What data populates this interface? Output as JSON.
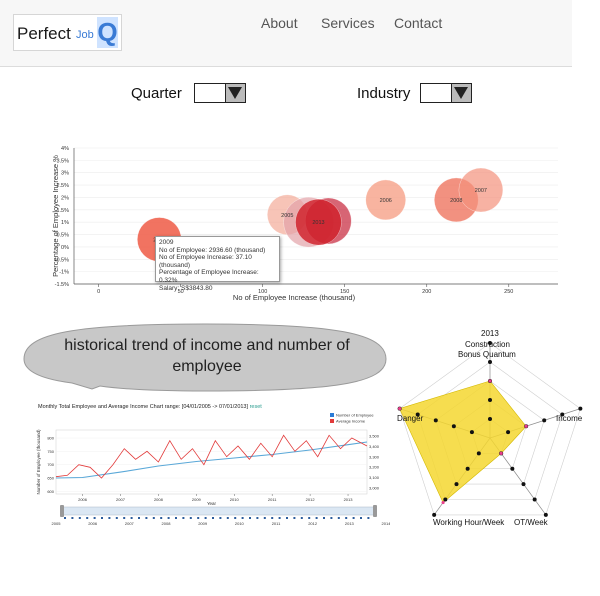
{
  "header": {
    "logo": {
      "part1": "Perfect",
      "part2": "Job",
      "part3": "Q"
    },
    "nav": [
      {
        "label": "About"
      },
      {
        "label": "Services"
      },
      {
        "label": "Contact"
      }
    ]
  },
  "filters": {
    "quarter": {
      "label": "Quarter",
      "value": ""
    },
    "industry": {
      "label": "Industry",
      "value": ""
    }
  },
  "chart_data": [
    {
      "type": "scatter",
      "subtype": "bubble",
      "title": "",
      "xlabel": "No of Employee Increase (thousand)",
      "ylabel": "Percentage of Employee Increase %",
      "xlim": [
        -15,
        280
      ],
      "ylim": [
        -1.5,
        4
      ],
      "x_ticks": [
        0,
        50,
        100,
        150,
        200,
        250
      ],
      "y_ticks": [
        -1.5,
        -1,
        -0.5,
        0,
        0.5,
        1,
        1.5,
        2,
        2.5,
        3,
        3.5,
        4
      ],
      "y_tick_format": "%",
      "grid": true,
      "points": [
        {
          "label": "2009",
          "x": 37,
          "y": 0.3,
          "r": 22,
          "color": "#ee5a45",
          "opacity": 0.85
        },
        {
          "label": "2005",
          "x": 115,
          "y": 1.3,
          "r": 20,
          "color": "#f3a590",
          "opacity": 0.65
        },
        {
          "label": "",
          "x": 128,
          "y": 1.0,
          "r": 25,
          "color": "#e3a2a8",
          "opacity": 0.7
        },
        {
          "label": "",
          "x": 140,
          "y": 1.05,
          "r": 23,
          "color": "#c72a3e",
          "opacity": 0.72
        },
        {
          "label": "2013",
          "x": 134,
          "y": 1.0,
          "r": 23,
          "color": "#d0202a",
          "opacity": 0.82
        },
        {
          "label": "2006",
          "x": 175,
          "y": 1.9,
          "r": 20,
          "color": "#f6a188",
          "opacity": 0.8
        },
        {
          "label": "2008",
          "x": 218,
          "y": 1.9,
          "r": 22,
          "color": "#ee6c55",
          "opacity": 0.75
        },
        {
          "label": "2007",
          "x": 233,
          "y": 2.3,
          "r": 22,
          "color": "#f3917c",
          "opacity": 0.7
        }
      ],
      "tooltip": {
        "title": "2009",
        "lines": [
          "No of Employee: 2936.60 (thousand)",
          "No of Employee Increase: 37.10 (thousand)",
          "Percentage of Employee Increase: 0.32%",
          "Salary: S$3843.80"
        ]
      }
    },
    {
      "type": "line",
      "title": "Monthly Total Employee and Average Income Chart",
      "range_label": "range: [04/01/2005 -> 07/01/2013]",
      "reset_label": "reset",
      "xlabel": "Year",
      "ylabel": "Number of Employee (thousand)",
      "x_ticks": [
        "2006",
        "2007",
        "2008",
        "2009",
        "2010",
        "2011",
        "2012",
        "2013"
      ],
      "left_y_ticks": [
        600,
        650,
        700,
        750,
        800
      ],
      "right_y_ticks": [
        "3,000",
        "3,100",
        "3,200",
        "3,300",
        "3,400",
        "3,500"
      ],
      "brush_ticks": [
        "2005",
        "2006",
        "2007",
        "2008",
        "2009",
        "2010",
        "2011",
        "2012",
        "2013",
        "2014"
      ],
      "legend": [
        {
          "name": "Number of Employee",
          "color": "#2b7bd6"
        },
        {
          "name": "Average Income",
          "color": "#e23a3a"
        }
      ],
      "series": [
        {
          "name": "Number of Employee",
          "color": "#5aa8d8",
          "points": [
            [
              2005.3,
              650
            ],
            [
              2006,
              652
            ],
            [
              2007,
              672
            ],
            [
              2008,
              695
            ],
            [
              2009,
              712
            ],
            [
              2010,
              725
            ],
            [
              2011,
              738
            ],
            [
              2012,
              755
            ],
            [
              2013,
              775
            ],
            [
              2013.5,
              785
            ]
          ]
        },
        {
          "name": "Average Income",
          "color": "#e23a3a",
          "points": [
            [
              2005.3,
              655
            ],
            [
              2005.6,
              660
            ],
            [
              2005.9,
              700
            ],
            [
              2006.2,
              690
            ],
            [
              2006.5,
              650
            ],
            [
              2006.8,
              700
            ],
            [
              2007.1,
              760
            ],
            [
              2007.4,
              720
            ],
            [
              2007.7,
              750
            ],
            [
              2008.0,
              710
            ],
            [
              2008.3,
              790
            ],
            [
              2008.6,
              720
            ],
            [
              2008.9,
              760
            ],
            [
              2009.2,
              700
            ],
            [
              2009.5,
              790
            ],
            [
              2009.8,
              730
            ],
            [
              2010.1,
              770
            ],
            [
              2010.4,
              720
            ],
            [
              2010.7,
              780
            ],
            [
              2011.0,
              730
            ],
            [
              2011.3,
              810
            ],
            [
              2011.6,
              750
            ],
            [
              2011.9,
              790
            ],
            [
              2012.2,
              730
            ],
            [
              2012.5,
              810
            ],
            [
              2012.8,
              760
            ],
            [
              2013.1,
              800
            ],
            [
              2013.5,
              770
            ]
          ]
        }
      ]
    },
    {
      "type": "radar",
      "title": "2013",
      "axes": [
        "Construction Bonus Quantum",
        "Income",
        "OT/Week",
        "Working Hour/Week",
        "Danger"
      ],
      "max": 5,
      "fill_color": "#f5d730",
      "values": [
        3,
        2,
        1,
        4.2,
        5
      ],
      "guide_dots": [
        [
          0.2,
          0.4,
          0.6,
          0.8,
          1
        ],
        [
          0.2,
          0.4,
          0.6,
          0.8,
          1
        ],
        [
          0.2,
          0.4,
          0.6,
          0.8,
          1
        ],
        [
          0.2,
          0.4,
          0.6,
          0.8,
          1
        ],
        [
          0.2,
          0.4,
          0.6,
          0.8,
          1
        ]
      ]
    }
  ],
  "callout": {
    "text": "historical trend of income and number of employee"
  },
  "radar_labels": {
    "year": "2013",
    "construction": "Construction",
    "bonus": "Bonus Quantum",
    "income": "Income",
    "ot": "OT/Week",
    "working": "Working Hour/Week",
    "danger": "Danger"
  }
}
